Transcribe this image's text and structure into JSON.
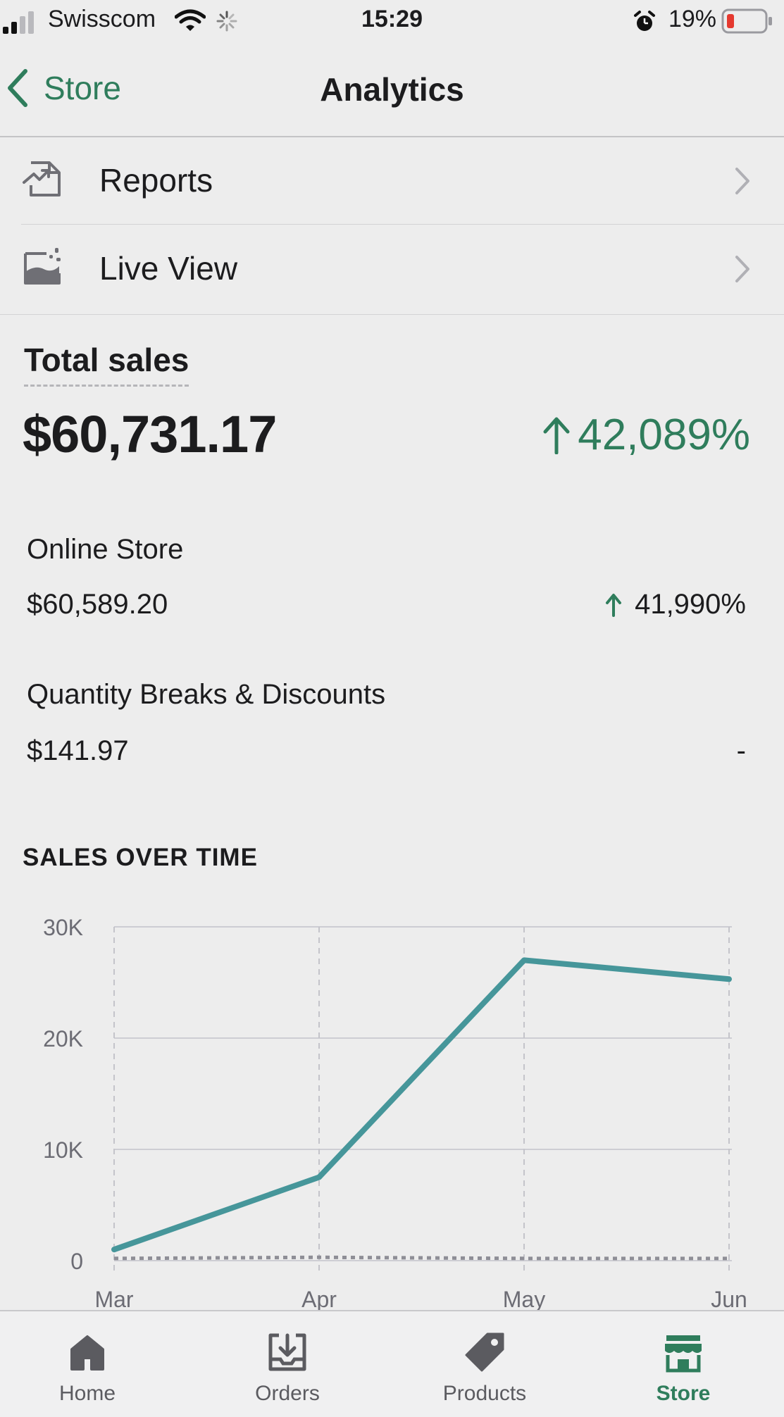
{
  "status_bar": {
    "carrier": "Swisscom",
    "time": "15:29",
    "battery_percent": "19%",
    "icons": [
      "signal-icon",
      "wifi-icon",
      "activity-spinner-icon",
      "alarm-icon",
      "battery-icon"
    ]
  },
  "nav": {
    "back_label": "Store",
    "title": "Analytics"
  },
  "menu": [
    {
      "label": "Reports",
      "icon": "reports-icon"
    },
    {
      "label": "Live View",
      "icon": "live-view-icon"
    }
  ],
  "total_sales": {
    "label": "Total sales",
    "value": "$60,731.17",
    "change": "42,089%",
    "trend": "up"
  },
  "channels": [
    {
      "name": "Online Store",
      "value": "$60,589.20",
      "change": "41,990%",
      "trend": "up"
    },
    {
      "name": "Quantity Breaks & Discounts",
      "value": "$141.97",
      "change": "-",
      "trend": "none"
    }
  ],
  "colors": {
    "accent": "#2f7d5c",
    "chart_line": "#46969a",
    "comparison_line": "#8e8e96"
  },
  "chart_data": {
    "type": "line",
    "title": "SALES OVER TIME",
    "categories": [
      "Mar",
      "Apr",
      "May",
      "Jun"
    ],
    "y_ticks": [
      "0",
      "10K",
      "20K",
      "30K"
    ],
    "ylim": [
      0,
      30000
    ],
    "grid": true,
    "series": [
      {
        "values": [
          1000,
          7500,
          27000,
          25300
        ]
      },
      {
        "values": [
          200,
          300,
          200,
          200
        ]
      }
    ]
  },
  "tab_bar": [
    {
      "label": "Home",
      "icon": "home-icon",
      "active": false
    },
    {
      "label": "Orders",
      "icon": "orders-icon",
      "active": false
    },
    {
      "label": "Products",
      "icon": "products-tag-icon",
      "active": false
    },
    {
      "label": "Store",
      "icon": "store-icon",
      "active": true
    }
  ]
}
